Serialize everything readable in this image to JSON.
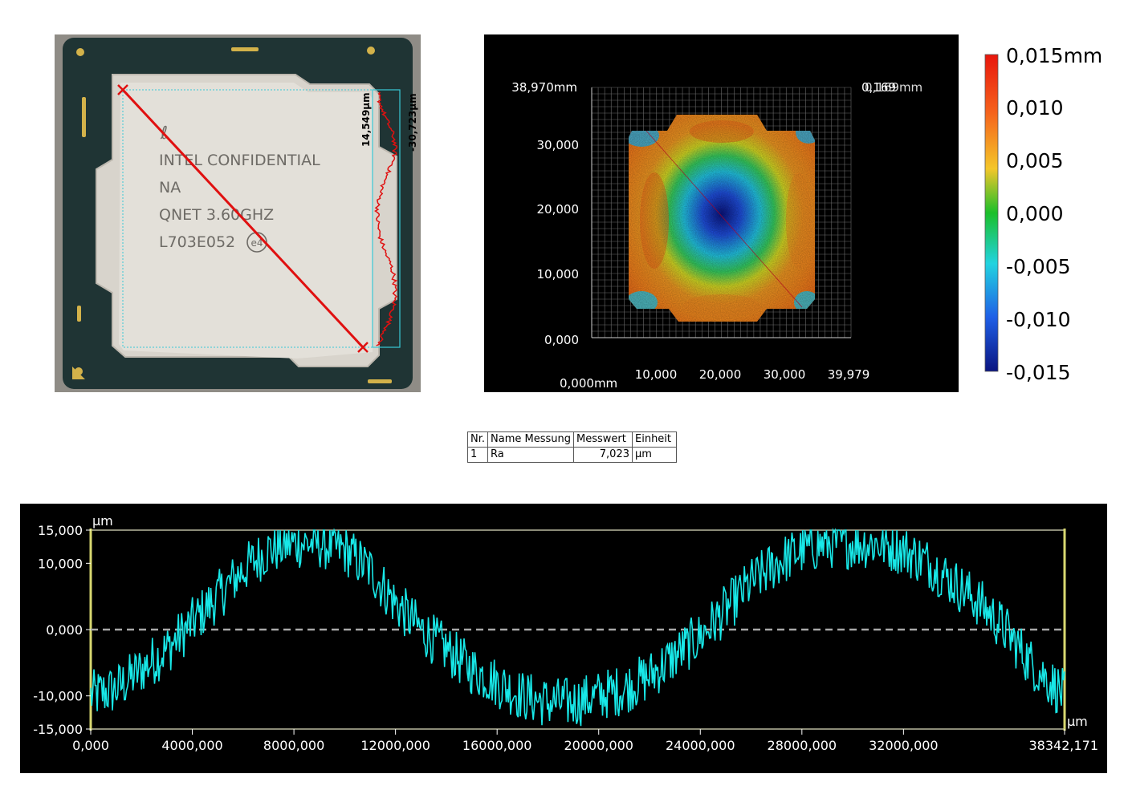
{
  "cpu_photo": {
    "engraving_lines": [
      "INTEL CONFIDENTIAL",
      "NA",
      "QNET 3.60GHZ",
      "L703E052"
    ],
    "e4_mark": "e4",
    "profile_label_1": "14,549µm",
    "profile_label_2": "-30,723µm",
    "colors": {
      "substrate": "#1f3434",
      "ihs": "#d9d6cf",
      "line": "#e01010",
      "box": "#39c9d6"
    }
  },
  "surface_map": {
    "y_top_label": "38,970mm",
    "y_ticks": [
      "30,000",
      "20,000",
      "10,000",
      "0,000"
    ],
    "x_origin_label": "0,000mm",
    "x_ticks": [
      "10,000",
      "20,000",
      "30,000",
      "39,979"
    ],
    "right_labels": [
      "0,169",
      "0,169mm"
    ]
  },
  "color_scale": {
    "labels": [
      "0,015mm",
      "0,010",
      "0,005",
      "0,000",
      "-0,005",
      "-0,010",
      "-0,015"
    ],
    "colors": [
      "#e8160c",
      "#f57a1c",
      "#f4c62a",
      "#1bbf2a",
      "#22d3e0",
      "#1f5fe6",
      "#0a1480"
    ]
  },
  "measurement_table": {
    "headers": [
      "Nr.",
      "Name Messung",
      "Messwert",
      "Einheit"
    ],
    "rows": [
      [
        "1",
        "Ra",
        "7,023",
        "µm"
      ]
    ]
  },
  "chart_data": {
    "type": "line",
    "ylabel": "µm",
    "xlabel": "µm",
    "ylim": [
      -15,
      15
    ],
    "xlim": [
      0,
      38342.171
    ],
    "y_tick_labels": [
      "15,000",
      "10,000",
      "0,000",
      "-10,000",
      "-15,000"
    ],
    "x_tick_labels": [
      "0,000",
      "4000,000",
      "8000,000",
      "12000,000",
      "16000,000",
      "20000,000",
      "24000,000",
      "28000,000",
      "32000,000",
      "38342,171"
    ],
    "grid": false,
    "series": [
      {
        "x": [
          0,
          1000,
          2000,
          3000,
          4000,
          5000,
          6000,
          7000,
          8000,
          9000,
          10000,
          11000,
          12000,
          13000,
          14000,
          15000,
          16000,
          17000,
          18000,
          19000,
          20000,
          21000,
          22000,
          23000,
          24000,
          25000,
          26000,
          27000,
          28000,
          29000,
          30000,
          31000,
          32000,
          33000,
          34000,
          35000,
          36000,
          37000,
          38342
        ],
        "values": [
          -10,
          -9,
          -6,
          -3,
          1,
          5,
          9,
          12,
          13,
          13,
          12,
          9,
          4,
          0,
          -3,
          -6,
          -8,
          -10,
          -11,
          -11,
          -10,
          -9,
          -7,
          -4,
          -1,
          3,
          7,
          10,
          12,
          13,
          13,
          13,
          12,
          10,
          7,
          4,
          0,
          -5,
          -10
        ],
        "noise_amplitude": 3,
        "color": "#18e8e8"
      }
    ]
  }
}
